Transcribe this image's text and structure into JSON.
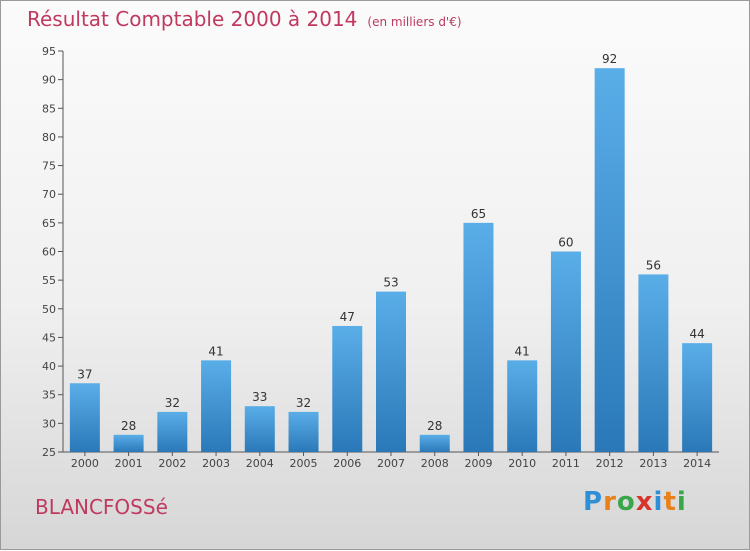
{
  "title": "Résultat Comptable 2000 à 2014",
  "unit_note": "(en milliers d'€)",
  "commune": "BLANCFOSSé",
  "logo": {
    "text": "Proxiti",
    "letters": [
      {
        "ch": "P",
        "color": "#2f8fd6"
      },
      {
        "ch": "r",
        "color": "#e8801c"
      },
      {
        "ch": "o",
        "color": "#3aa64a"
      },
      {
        "ch": "x",
        "color": "#d9342c"
      },
      {
        "ch": "i",
        "color": "#2f8fd6"
      },
      {
        "ch": "t",
        "color": "#e8801c"
      },
      {
        "ch": "i",
        "color": "#3aa64a"
      }
    ]
  },
  "colors": {
    "bar": "#3f97d8",
    "bar_dark": "#2a78b8",
    "title": "#c0395f"
  },
  "chart_data": {
    "type": "bar",
    "title": "Résultat Comptable 2000 à 2014",
    "xlabel": "",
    "ylabel": "en milliers d'€",
    "ylim": [
      25,
      95
    ],
    "yticks": [
      25,
      30,
      35,
      40,
      45,
      50,
      55,
      60,
      65,
      70,
      75,
      80,
      85,
      90,
      95
    ],
    "grid": false,
    "categories": [
      "2000",
      "2001",
      "2002",
      "2003",
      "2004",
      "2005",
      "2006",
      "2007",
      "2008",
      "2009",
      "2010",
      "2011",
      "2012",
      "2013",
      "2014"
    ],
    "values": [
      37,
      28,
      32,
      41,
      33,
      32,
      47,
      53,
      28,
      65,
      41,
      60,
      92,
      56,
      44
    ]
  }
}
